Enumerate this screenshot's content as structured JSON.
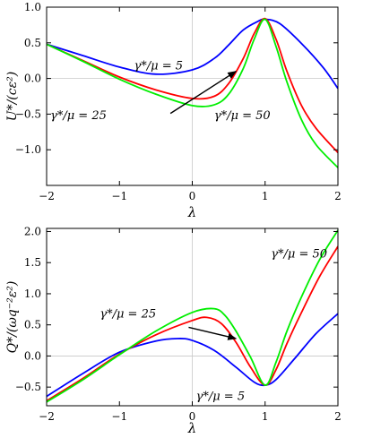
{
  "chart_data": [
    {
      "type": "line",
      "xlabel": "λ",
      "ylabel": "U*/(cε²)",
      "xlim": [
        -2,
        2
      ],
      "ylim": [
        -1.5,
        1.0
      ],
      "xticks": [
        "−2",
        "−1",
        "0",
        "1",
        "2"
      ],
      "yticks": [
        "−1.0",
        "−0.5",
        "0.0",
        "0.5",
        "1.0"
      ],
      "xtick_values": [
        -2,
        -1,
        0,
        1,
        2
      ],
      "ytick_values": [
        -1.0,
        -0.5,
        0.0,
        0.5,
        1.0
      ],
      "grid": "x=0 and y=0 reference lines",
      "series": [
        {
          "color": "#0000ff",
          "label_ref": 0,
          "x": [
            -2,
            -1.5,
            -1,
            -0.5,
            0,
            0.3,
            0.5,
            0.7,
            0.9,
            1.0,
            1.2,
            1.5,
            1.8,
            2.0
          ],
          "values": [
            0.48,
            0.32,
            0.16,
            0.06,
            0.12,
            0.28,
            0.47,
            0.68,
            0.8,
            0.83,
            0.77,
            0.49,
            0.15,
            -0.14
          ]
        },
        {
          "color": "#ff0000",
          "label_ref": 2,
          "x": [
            -2,
            -1.5,
            -1,
            -0.5,
            0,
            0.3,
            0.5,
            0.7,
            0.85,
            1.0,
            1.15,
            1.3,
            1.5,
            1.7,
            2.0
          ],
          "values": [
            0.48,
            0.25,
            0.02,
            -0.16,
            -0.28,
            -0.25,
            -0.07,
            0.28,
            0.63,
            0.84,
            0.55,
            0.1,
            -0.38,
            -0.7,
            -1.04
          ]
        },
        {
          "color": "#00ee00",
          "label_ref": 1,
          "x": [
            -2,
            -1.5,
            -1,
            -0.5,
            0,
            0.3,
            0.5,
            0.7,
            0.85,
            1.0,
            1.15,
            1.3,
            1.5,
            1.7,
            2.0
          ],
          "values": [
            0.48,
            0.24,
            -0.01,
            -0.22,
            -0.38,
            -0.37,
            -0.22,
            0.14,
            0.55,
            0.83,
            0.45,
            -0.05,
            -0.58,
            -0.93,
            -1.25
          ]
        }
      ],
      "annotations": [
        {
          "text": "γ*/μ = 5",
          "at": [
            -0.8,
            0.13
          ]
        },
        {
          "text": "γ*/μ = 50",
          "at": [
            0.3,
            -0.57
          ]
        },
        {
          "text": "γ*/μ = 25",
          "at": [
            -1.95,
            -0.57
          ]
        }
      ],
      "arrow": {
        "from": [
          -0.3,
          -0.49
        ],
        "to": [
          0.6,
          0.1
        ]
      }
    },
    {
      "type": "line",
      "xlabel": "λ",
      "ylabel": "Q*/(ωq⁻²ε²)",
      "xlim": [
        -2,
        2
      ],
      "ylim": [
        -0.8,
        2.05
      ],
      "xticks": [
        "−2",
        "−1",
        "0",
        "1",
        "2"
      ],
      "yticks": [
        "−0.5",
        "0.0",
        "0.5",
        "1.0",
        "1.5",
        "2.0"
      ],
      "xtick_values": [
        -2,
        -1,
        0,
        1,
        2
      ],
      "ytick_values": [
        -0.5,
        0.0,
        0.5,
        1.0,
        1.5,
        2.0
      ],
      "grid": "x=0 and y=0 reference lines",
      "series": [
        {
          "color": "#0000ff",
          "label_ref": 2,
          "x": [
            -2,
            -1.5,
            -1,
            -0.5,
            -0.2,
            0,
            0.3,
            0.6,
            0.85,
            1.0,
            1.15,
            1.4,
            1.7,
            2.0
          ],
          "values": [
            -0.65,
            -0.28,
            0.06,
            0.24,
            0.28,
            0.25,
            0.09,
            -0.18,
            -0.42,
            -0.47,
            -0.38,
            -0.05,
            0.36,
            0.68
          ]
        },
        {
          "color": "#ff0000",
          "label_ref": 0,
          "x": [
            -2,
            -1.5,
            -1,
            -0.5,
            0,
            0.2,
            0.4,
            0.6,
            0.8,
            1.0,
            1.15,
            1.3,
            1.5,
            1.75,
            2.0
          ],
          "values": [
            -0.72,
            -0.36,
            0.03,
            0.34,
            0.57,
            0.62,
            0.52,
            0.22,
            -0.18,
            -0.47,
            -0.22,
            0.2,
            0.7,
            1.28,
            1.76
          ]
        },
        {
          "color": "#00ee00",
          "label_ref": 1,
          "x": [
            -2,
            -1.5,
            -1,
            -0.5,
            0,
            0.3,
            0.45,
            0.6,
            0.8,
            1.0,
            1.15,
            1.3,
            1.5,
            1.75,
            2.0
          ],
          "values": [
            -0.74,
            -0.38,
            0.02,
            0.4,
            0.7,
            0.76,
            0.65,
            0.4,
            -0.02,
            -0.47,
            -0.1,
            0.4,
            0.95,
            1.55,
            2.02
          ]
        }
      ],
      "annotations": [
        {
          "text": "γ*/μ = 25",
          "at": [
            -1.27,
            0.62
          ]
        },
        {
          "text": "γ*/μ = 50",
          "at": [
            1.08,
            1.58
          ]
        },
        {
          "text": "γ*/μ = 5",
          "at": [
            0.05,
            -0.71
          ]
        }
      ],
      "arrow": {
        "from": [
          -0.05,
          0.46
        ],
        "to": [
          0.6,
          0.28
        ]
      }
    }
  ]
}
